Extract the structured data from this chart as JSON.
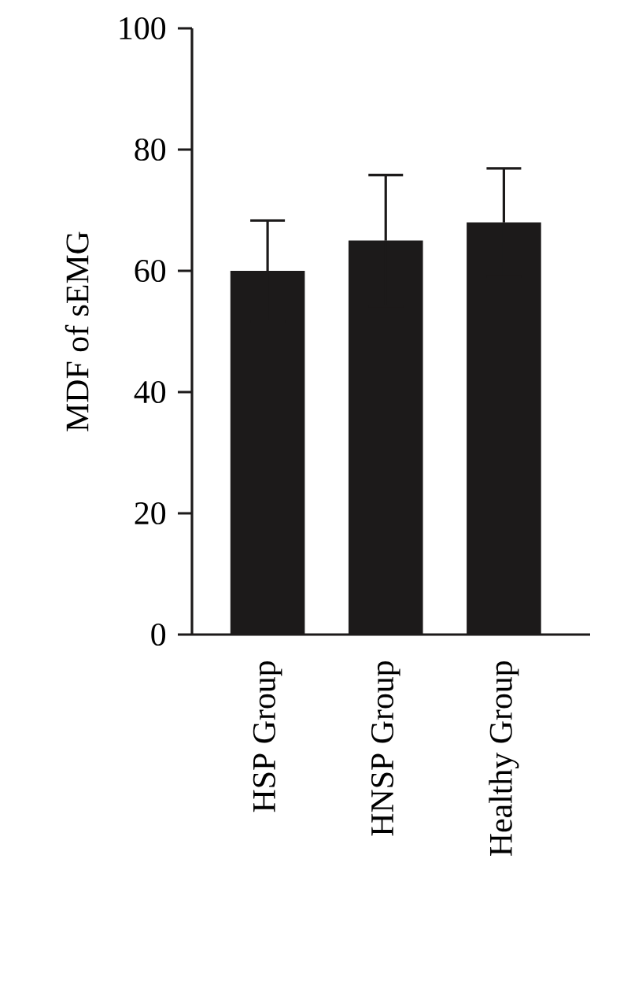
{
  "chart_data": {
    "type": "bar",
    "ylabel": "MDF of sEMG",
    "categories": [
      "HSP Group",
      "HNSP Group",
      "Healthy Group"
    ],
    "values": [
      60,
      65,
      68
    ],
    "errors": [
      8.3,
      10.8,
      8.9
    ],
    "color": "#1c1a1a",
    "ylim": [
      0,
      100
    ],
    "yticks": [
      0,
      20,
      40,
      60,
      80,
      100
    ],
    "grid": false
  }
}
